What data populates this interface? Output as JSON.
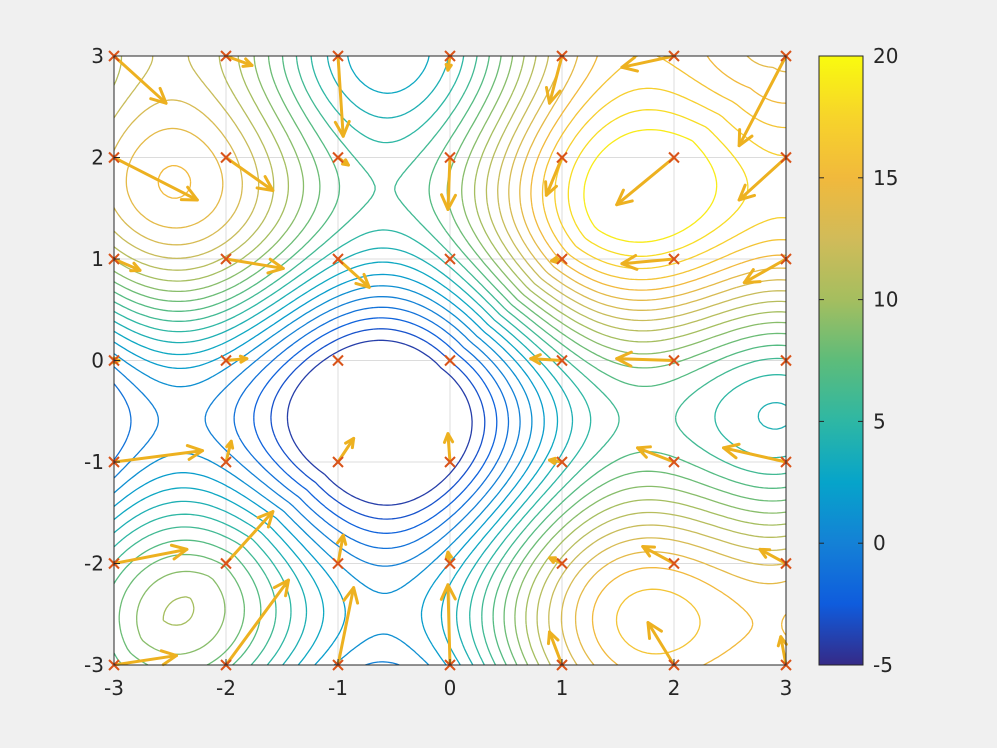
{
  "chart_data": {
    "type": "contour",
    "title": "",
    "xlabel": "",
    "ylabel": "",
    "xlim": [
      -3,
      3
    ],
    "ylim": [
      -3,
      3
    ],
    "grid": true,
    "xticks": [
      "-3",
      "-2",
      "-1",
      "0",
      "1",
      "2",
      "3"
    ],
    "yticks": [
      "-3",
      "-2",
      "-1",
      "0",
      "1",
      "2",
      "3"
    ],
    "colorbar": {
      "min": -5,
      "max": 20,
      "ticks": [
        "-5",
        "0",
        "5",
        "10",
        "15",
        "20"
      ],
      "colormap": "parula",
      "position": "right"
    },
    "contour_levels": [
      -4,
      -3,
      -2,
      -1,
      0,
      1,
      2,
      3,
      4,
      5,
      6,
      7,
      8,
      9,
      10,
      11,
      12,
      13,
      14,
      15,
      16,
      17,
      18,
      19
    ],
    "minima": [
      {
        "x": -0.5,
        "y": -0.5
      },
      {
        "x": -0.5,
        "y": 1.45
      },
      {
        "x": -2.4,
        "y": -0.5
      },
      {
        "x": 1.45,
        "y": -0.5
      },
      {
        "x": -2.4,
        "y": 1.45
      },
      {
        "x": 1.45,
        "y": 1.45
      },
      {
        "x": -0.5,
        "y": -2.4
      },
      {
        "x": -2.4,
        "y": -2.4
      },
      {
        "x": 1.45,
        "y": -2.4
      }
    ],
    "maxima": [
      {
        "x": -1.7,
        "y": 2.9
      },
      {
        "x": 2.9,
        "y": -1.7
      },
      {
        "x": 0.55,
        "y": 0.55
      },
      {
        "x": -1.9,
        "y": 0.5
      },
      {
        "x": 0.5,
        "y": -1.7
      }
    ],
    "quiver": {
      "color": "#EDB120",
      "marker": "x",
      "marker_color": "#D95319",
      "points": [
        {
          "x": -3,
          "y": 3,
          "u": 0.5,
          "v": -0.5
        },
        {
          "x": -2,
          "y": 3,
          "u": 0.25,
          "v": -0.1
        },
        {
          "x": -1,
          "y": 3,
          "u": 0.05,
          "v": -0.85
        },
        {
          "x": 0,
          "y": 3,
          "u": -0.02,
          "v": -0.15
        },
        {
          "x": 1,
          "y": 3,
          "u": -0.12,
          "v": -0.5
        },
        {
          "x": 2,
          "y": 3,
          "u": -0.5,
          "v": -0.12
        },
        {
          "x": 3,
          "y": 3,
          "u": -0.45,
          "v": -0.95
        },
        {
          "x": -3,
          "y": 2,
          "u": 0.8,
          "v": -0.45
        },
        {
          "x": -2,
          "y": 2,
          "u": 0.45,
          "v": -0.35
        },
        {
          "x": -1,
          "y": 2,
          "u": 0.1,
          "v": -0.08
        },
        {
          "x": 0,
          "y": 2,
          "u": -0.02,
          "v": -0.55
        },
        {
          "x": 1,
          "y": 2,
          "u": -0.15,
          "v": -0.4
        },
        {
          "x": 2,
          "y": 2,
          "u": -0.55,
          "v": -0.5
        },
        {
          "x": 3,
          "y": 2,
          "u": -0.45,
          "v": -0.45
        },
        {
          "x": -3,
          "y": 1,
          "u": 0.25,
          "v": -0.12
        },
        {
          "x": -2,
          "y": 1,
          "u": 0.55,
          "v": -0.1
        },
        {
          "x": -1,
          "y": 1,
          "u": 0.3,
          "v": -0.3
        },
        {
          "x": 0,
          "y": 1,
          "u": 0,
          "v": 0
        },
        {
          "x": 1,
          "y": 1,
          "u": -0.1,
          "v": -0.02
        },
        {
          "x": 2,
          "y": 1,
          "u": -0.5,
          "v": -0.05
        },
        {
          "x": 3,
          "y": 1,
          "u": -0.4,
          "v": -0.25
        },
        {
          "x": -3,
          "y": 0,
          "u": 0.05,
          "v": 0
        },
        {
          "x": -2,
          "y": 0,
          "u": 0.2,
          "v": 0.02
        },
        {
          "x": -1,
          "y": 0,
          "u": 0,
          "v": 0
        },
        {
          "x": 0,
          "y": 0,
          "u": 0,
          "v": 0
        },
        {
          "x": 1,
          "y": 0,
          "u": -0.3,
          "v": 0.02
        },
        {
          "x": 2,
          "y": 0,
          "u": -0.55,
          "v": 0.02
        },
        {
          "x": 3,
          "y": 0,
          "u": 0,
          "v": 0
        },
        {
          "x": -3,
          "y": -1,
          "u": 0.85,
          "v": 0.12
        },
        {
          "x": -2,
          "y": -1,
          "u": 0.05,
          "v": 0.22
        },
        {
          "x": -1,
          "y": -1,
          "u": 0.15,
          "v": 0.25
        },
        {
          "x": 0,
          "y": -1,
          "u": -0.02,
          "v": 0.3
        },
        {
          "x": 1,
          "y": -1,
          "u": -0.12,
          "v": 0.02
        },
        {
          "x": 2,
          "y": -1,
          "u": -0.35,
          "v": 0.15
        },
        {
          "x": 3,
          "y": -1,
          "u": -0.6,
          "v": 0.15
        },
        {
          "x": -3,
          "y": -2,
          "u": 0.7,
          "v": 0.15
        },
        {
          "x": -2,
          "y": -2,
          "u": 0.45,
          "v": 0.55
        },
        {
          "x": -1,
          "y": -2,
          "u": 0.05,
          "v": 0.3
        },
        {
          "x": 0,
          "y": -2,
          "u": -0.02,
          "v": 0.12
        },
        {
          "x": 1,
          "y": -2,
          "u": -0.12,
          "v": 0.06
        },
        {
          "x": 2,
          "y": -2,
          "u": -0.3,
          "v": 0.18
        },
        {
          "x": 3,
          "y": -2,
          "u": -0.25,
          "v": 0.15
        },
        {
          "x": -3,
          "y": -3,
          "u": 0.6,
          "v": 0.1
        },
        {
          "x": -2,
          "y": -3,
          "u": 0.6,
          "v": 0.9
        },
        {
          "x": -1,
          "y": -3,
          "u": 0.15,
          "v": 0.82
        },
        {
          "x": 0,
          "y": -3,
          "u": -0.02,
          "v": 0.85
        },
        {
          "x": 1,
          "y": -3,
          "u": -0.12,
          "v": 0.35
        },
        {
          "x": 2,
          "y": -3,
          "u": -0.25,
          "v": 0.45
        },
        {
          "x": 3,
          "y": -3,
          "u": -0.05,
          "v": 0.3
        }
      ]
    }
  }
}
